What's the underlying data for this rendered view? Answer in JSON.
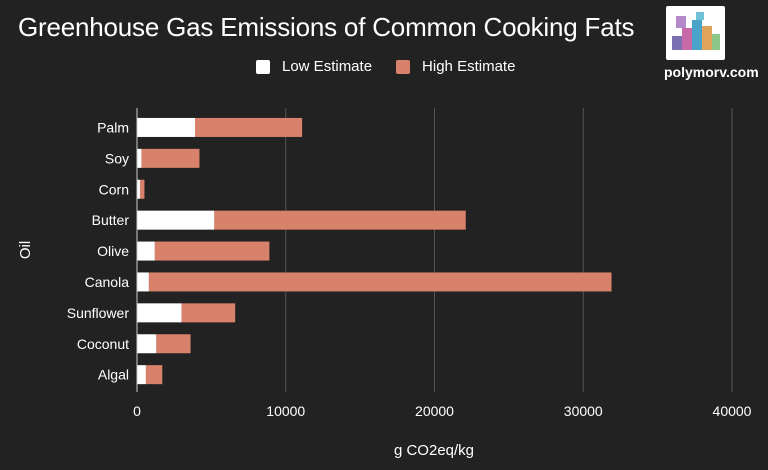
{
  "title": "Greenhouse Gas Emissions of Common Cooking Fats",
  "brand": "polymorv.com",
  "colors": {
    "background": "#222222",
    "low": "#ffffff",
    "high": "#d9826b",
    "grid": "#555555"
  },
  "chart_data": {
    "type": "bar",
    "orientation": "horizontal",
    "stacked": true,
    "categories": [
      "Palm",
      "Soy",
      "Corn",
      "Butter",
      "Olive",
      "Canola",
      "Sunflower",
      "Coconut",
      "Algal"
    ],
    "series": [
      {
        "name": "Low Estimate",
        "values": [
          3900,
          300,
          200,
          5200,
          1200,
          800,
          3000,
          1300,
          600
        ]
      },
      {
        "name": "High Estimate",
        "values": [
          7200,
          3900,
          300,
          16900,
          7700,
          31100,
          3600,
          2300,
          1100
        ]
      }
    ],
    "xlabel": "g CO2eq/kg",
    "ylabel": "Oil",
    "xlim": [
      0,
      40000
    ],
    "xticks": [
      "0",
      "10000",
      "20000",
      "30000",
      "40000"
    ],
    "grid": true,
    "legend_position": "top"
  }
}
